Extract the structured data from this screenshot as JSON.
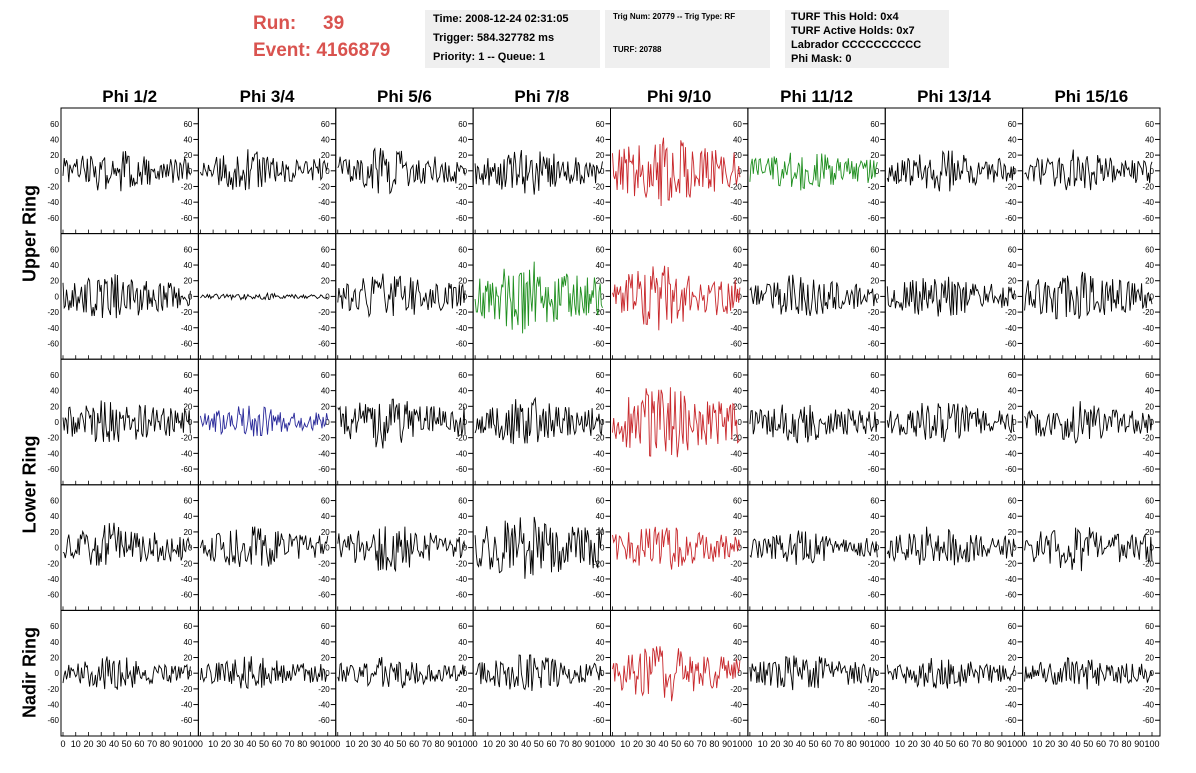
{
  "header": {
    "run_label": "Run:",
    "run_value": "39",
    "event_label": "Event:",
    "event_value": "4166879",
    "accent_color": "#d9534f"
  },
  "info_time": {
    "time": "Time: 2008-12-24 02:31:05",
    "trigger": "Trigger: 584.327782 ms",
    "priority": "Priority: 1 -- Queue: 1"
  },
  "info_trig": {
    "trig": "Trig Num: 20779 -- Trig Type: RF",
    "turf": "TURF: 20788"
  },
  "info_turf": {
    "this_hold": "TURF This Hold: 0x4",
    "active_holds": "TURF Active Holds: 0x7",
    "labrador": "Labrador CCCCCCCCCC",
    "phi_mask": "Phi Mask: 0"
  },
  "chart_data": {
    "type": "line",
    "columns": [
      "Phi 1/2",
      "Phi 3/4",
      "Phi 5/6",
      "Phi 7/8",
      "Phi 9/10",
      "Phi 11/12",
      "Phi 13/14",
      "Phi 15/16"
    ],
    "ring_labels": [
      {
        "text": "Upper Ring",
        "rows": [
          0,
          1
        ]
      },
      {
        "text": "Lower Ring",
        "rows": [
          2,
          3
        ]
      },
      {
        "text": "Nadir Ring",
        "rows": [
          4
        ]
      }
    ],
    "x_range": [
      0,
      100
    ],
    "x_ticks": [
      "0",
      "10",
      "20",
      "30",
      "40",
      "50",
      "60",
      "70",
      "80",
      "90",
      "100"
    ],
    "y_range": [
      -75,
      75
    ],
    "y_ticks": [
      "60",
      "40",
      "20",
      "0",
      "-20",
      "-40",
      "-60"
    ],
    "colors": {
      "black": "#000000",
      "red": "#c8282c",
      "green": "#1f8f1f",
      "blue": "#2a2a9a"
    },
    "panels": [
      [
        "black",
        "black",
        "black",
        "black",
        "red",
        "green",
        "black",
        "black"
      ],
      [
        "black",
        "black",
        "black",
        "green",
        "red",
        "black",
        "black",
        "black"
      ],
      [
        "black",
        "blue",
        "black",
        "black",
        "red",
        "black",
        "black",
        "black"
      ],
      [
        "black",
        "black",
        "black",
        "black",
        "red",
        "black",
        "black",
        "black"
      ],
      [
        "black",
        "black",
        "black",
        "black",
        "red",
        "black",
        "black",
        "black"
      ]
    ],
    "amplitudes": [
      [
        18,
        18,
        20,
        20,
        30,
        18,
        18,
        18
      ],
      [
        20,
        3,
        20,
        30,
        28,
        18,
        18,
        22
      ],
      [
        20,
        14,
        22,
        20,
        32,
        18,
        18,
        18
      ],
      [
        20,
        18,
        20,
        30,
        20,
        14,
        18,
        20
      ],
      [
        14,
        14,
        14,
        16,
        24,
        16,
        14,
        14
      ]
    ]
  }
}
